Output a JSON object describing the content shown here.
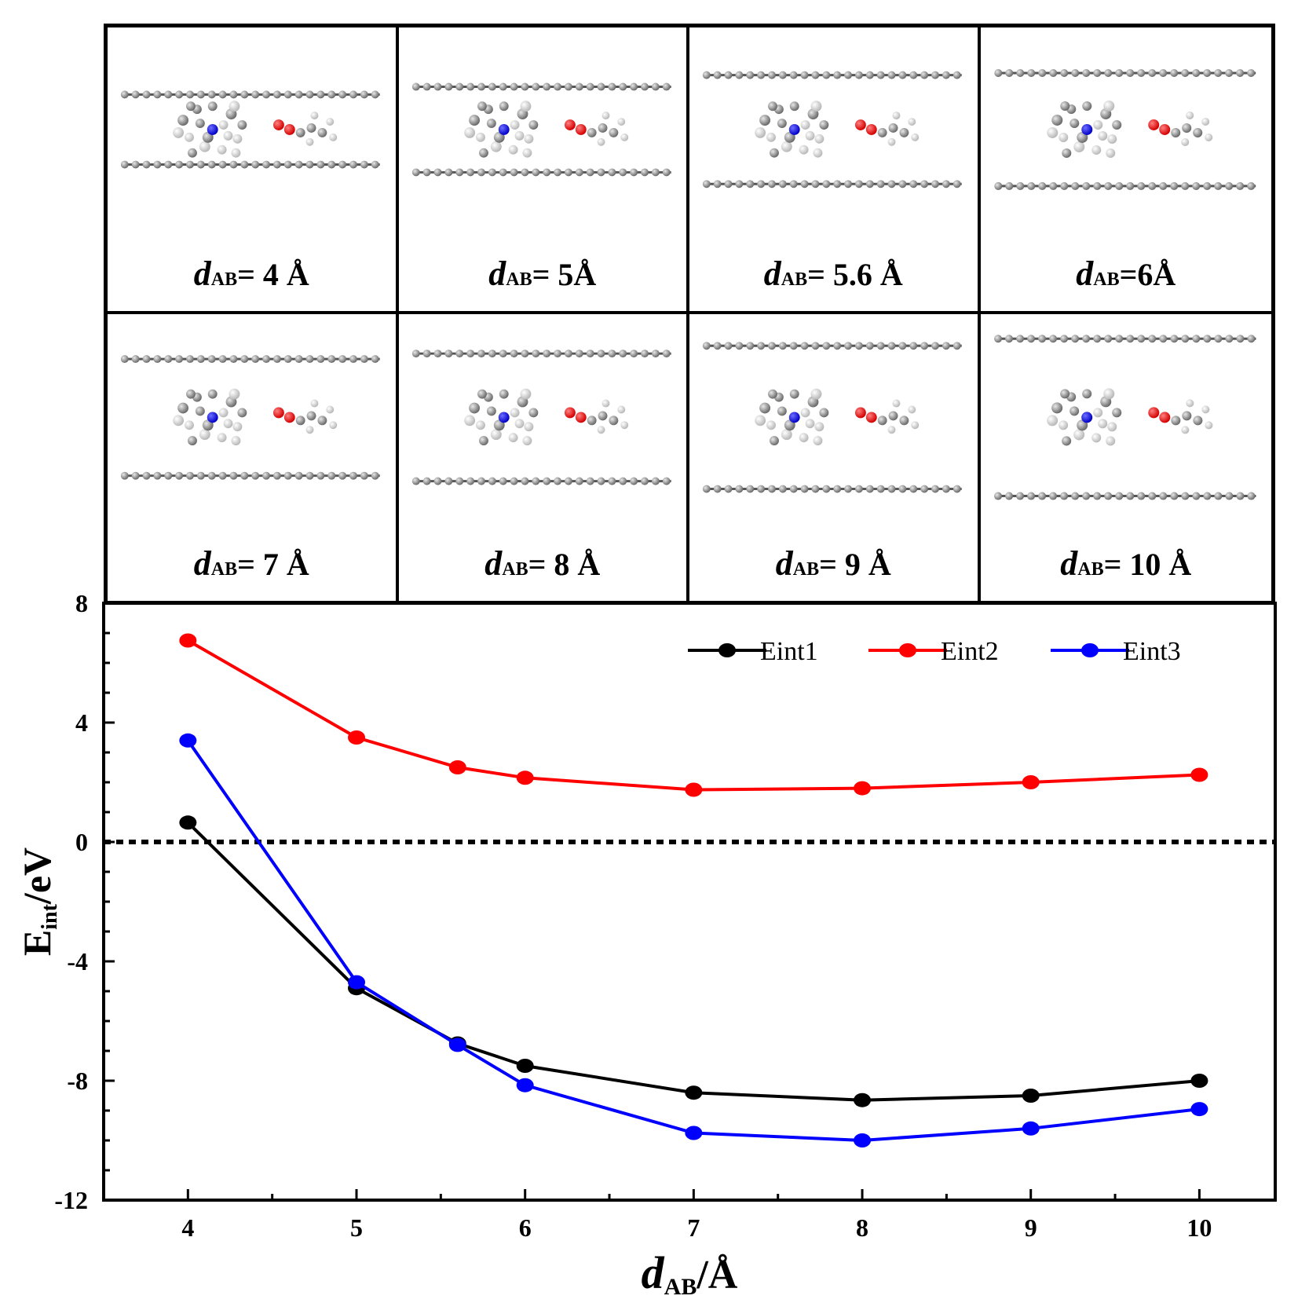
{
  "panels": [
    {
      "prefix": "d",
      "sub": "AB",
      "value": "= 4 Å"
    },
    {
      "prefix": "d",
      "sub": "AB",
      "value": "= 5Å"
    },
    {
      "prefix": "d",
      "sub": "AB",
      "value": "= 5.6 Å"
    },
    {
      "prefix": "d",
      "sub": "AB",
      "value": "=6Å"
    },
    {
      "prefix": "d",
      "sub": "AB",
      "value": "= 7 Å"
    },
    {
      "prefix": "d",
      "sub": "AB",
      "value": "= 8 Å"
    },
    {
      "prefix": "d",
      "sub": "AB",
      "value": "= 9 Å"
    },
    {
      "prefix": "d",
      "sub": "AB",
      "value": "= 10 Å"
    }
  ],
  "chart_data": {
    "type": "line",
    "xlabel": {
      "main": "d",
      "sub": "AB",
      "rest": "/Å"
    },
    "ylabel": {
      "main": "E",
      "sub": "int",
      "rest": "/eV"
    },
    "xlim": [
      3.5,
      10.45
    ],
    "ylim": [
      -12,
      8
    ],
    "xticks": [
      4,
      5,
      6,
      7,
      8,
      9,
      10
    ],
    "yticks": [
      8,
      4,
      0,
      -4,
      -8,
      -12
    ],
    "x": [
      4,
      5,
      5.6,
      6,
      7,
      8,
      9,
      10
    ],
    "reference_line": 0,
    "legend_position": "top-right",
    "series": [
      {
        "name": "Eint1",
        "color": "#000000",
        "values": [
          0.65,
          -4.9,
          -6.75,
          -7.5,
          -8.4,
          -8.65,
          -8.5,
          -8.0
        ]
      },
      {
        "name": "Eint2",
        "color": "#ff0000",
        "values": [
          6.75,
          3.5,
          2.5,
          2.15,
          1.75,
          1.8,
          2.0,
          2.25
        ]
      },
      {
        "name": "Eint3",
        "color": "#0000ff",
        "values": [
          3.4,
          -4.7,
          -6.8,
          -8.15,
          -9.75,
          -10.0,
          -9.6,
          -8.95
        ]
      }
    ]
  }
}
